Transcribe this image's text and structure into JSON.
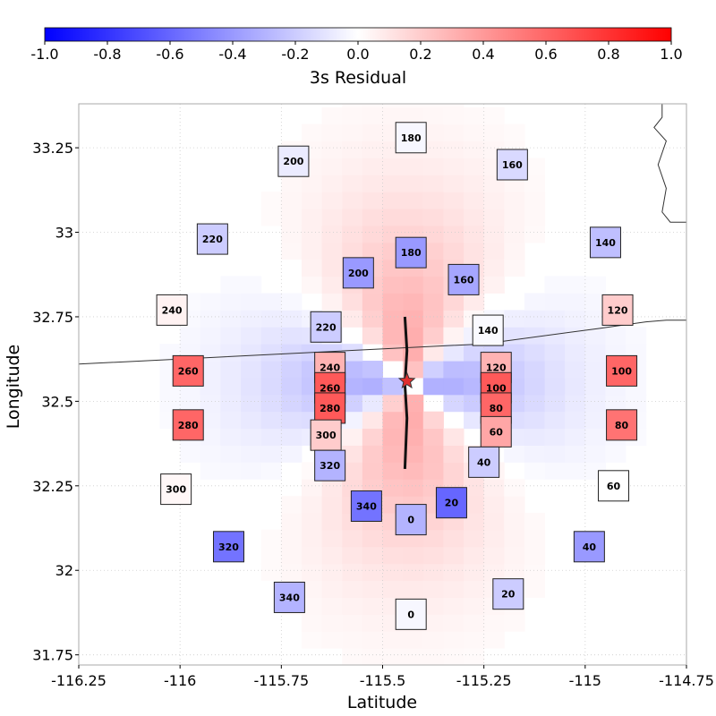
{
  "chart_data": {
    "type": "heatmap",
    "title": "",
    "xlabel": "Latitude",
    "ylabel": "Longitude",
    "xlim": [
      -116.25,
      -114.75
    ],
    "ylim": [
      31.72,
      33.38
    ],
    "xticks": [
      -116.25,
      -116,
      -115.75,
      -115.5,
      -115.25,
      -115,
      -114.75
    ],
    "xtick_labels": [
      "-116.25",
      "-116",
      "-115.75",
      "-115.5",
      "-115.25",
      "-115",
      "-114.75"
    ],
    "yticks": [
      31.75,
      32,
      32.25,
      32.5,
      32.75,
      33,
      33.25
    ],
    "ytick_labels": [
      "31.75",
      "32",
      "32.25",
      "32.5",
      "32.75",
      "33",
      "33.25"
    ],
    "grid": true,
    "colorbar": {
      "label": "3s Residual",
      "min": -1.0,
      "max": 1.0,
      "ticks": [
        -1.0,
        -0.8,
        -0.6,
        -0.4,
        -0.2,
        0.0,
        0.2,
        0.4,
        0.6,
        0.8,
        1.0
      ],
      "tick_labels": [
        "-1.0",
        "-0.8",
        "-0.6",
        "-0.4",
        "-0.2",
        "0.0",
        "0.2",
        "0.4",
        "0.6",
        "0.8",
        "1.0"
      ],
      "colormap": "bwr"
    },
    "epicenter": {
      "x": -115.44,
      "y": 32.56
    },
    "fault_trace": [
      {
        "x": -115.445,
        "y": 32.75
      },
      {
        "x": -115.44,
        "y": 32.65
      },
      {
        "x": -115.445,
        "y": 32.55
      },
      {
        "x": -115.44,
        "y": 32.45
      },
      {
        "x": -115.445,
        "y": 32.3
      }
    ],
    "border_line": [
      {
        "x": -116.25,
        "y": 32.61
      },
      {
        "x": -115.75,
        "y": 32.64
      },
      {
        "x": -115.25,
        "y": 32.67
      },
      {
        "x": -114.97,
        "y": 32.715
      },
      {
        "x": -114.85,
        "y": 32.735
      },
      {
        "x": -114.8,
        "y": 32.74
      },
      {
        "x": -114.75,
        "y": 32.74
      }
    ],
    "state_line": [
      {
        "x": -114.81,
        "y": 33.38
      },
      {
        "x": -114.81,
        "y": 33.34
      },
      {
        "x": -114.83,
        "y": 33.31
      },
      {
        "x": -114.8,
        "y": 33.27
      },
      {
        "x": -114.82,
        "y": 33.2
      },
      {
        "x": -114.8,
        "y": 33.13
      },
      {
        "x": -114.81,
        "y": 33.06
      },
      {
        "x": -114.79,
        "y": 33.03
      },
      {
        "x": -114.75,
        "y": 33.03
      }
    ],
    "stations": [
      {
        "label": "180",
        "x": -115.43,
        "y": 33.28,
        "value": -0.03
      },
      {
        "label": "200",
        "x": -115.72,
        "y": 33.21,
        "value": -0.08
      },
      {
        "label": "160",
        "x": -115.18,
        "y": 33.2,
        "value": -0.15
      },
      {
        "label": "220",
        "x": -115.92,
        "y": 32.98,
        "value": -0.2
      },
      {
        "label": "140",
        "x": -114.95,
        "y": 32.97,
        "value": -0.25
      },
      {
        "label": "180",
        "x": -115.43,
        "y": 32.94,
        "value": -0.4
      },
      {
        "label": "200",
        "x": -115.56,
        "y": 32.88,
        "value": -0.4
      },
      {
        "label": "160",
        "x": -115.3,
        "y": 32.86,
        "value": -0.35
      },
      {
        "label": "240",
        "x": -116.02,
        "y": 32.77,
        "value": 0.05
      },
      {
        "label": "120",
        "x": -114.92,
        "y": 32.77,
        "value": 0.2
      },
      {
        "label": "220",
        "x": -115.64,
        "y": 32.72,
        "value": -0.2
      },
      {
        "label": "140",
        "x": -115.24,
        "y": 32.71,
        "value": -0.02
      },
      {
        "label": "240",
        "x": -115.63,
        "y": 32.6,
        "value": 0.3
      },
      {
        "label": "120",
        "x": -115.22,
        "y": 32.6,
        "value": 0.3
      },
      {
        "label": "260",
        "x": -115.98,
        "y": 32.59,
        "value": 0.6
      },
      {
        "label": "100",
        "x": -114.91,
        "y": 32.59,
        "value": 0.6
      },
      {
        "label": "260",
        "x": -115.63,
        "y": 32.54,
        "value": 0.65
      },
      {
        "label": "100",
        "x": -115.22,
        "y": 32.54,
        "value": 0.65
      },
      {
        "label": "280",
        "x": -115.63,
        "y": 32.48,
        "value": 0.65
      },
      {
        "label": "80",
        "x": -115.22,
        "y": 32.48,
        "value": 0.6
      },
      {
        "label": "280",
        "x": -115.98,
        "y": 32.43,
        "value": 0.6
      },
      {
        "label": "80",
        "x": -114.91,
        "y": 32.43,
        "value": 0.55
      },
      {
        "label": "300",
        "x": -115.64,
        "y": 32.4,
        "value": 0.2
      },
      {
        "label": "60",
        "x": -115.22,
        "y": 32.41,
        "value": 0.35
      },
      {
        "label": "320",
        "x": -115.63,
        "y": 32.31,
        "value": -0.3
      },
      {
        "label": "40",
        "x": -115.25,
        "y": 32.32,
        "value": -0.2
      },
      {
        "label": "300",
        "x": -116.01,
        "y": 32.24,
        "value": 0.03
      },
      {
        "label": "60",
        "x": -114.93,
        "y": 32.25,
        "value": 0.0
      },
      {
        "label": "340",
        "x": -115.54,
        "y": 32.19,
        "value": -0.55
      },
      {
        "label": "20",
        "x": -115.33,
        "y": 32.2,
        "value": -0.6
      },
      {
        "label": "0",
        "x": -115.43,
        "y": 32.15,
        "value": -0.3
      },
      {
        "label": "320",
        "x": -115.88,
        "y": 32.07,
        "value": -0.55
      },
      {
        "label": "40",
        "x": -114.99,
        "y": 32.07,
        "value": -0.4
      },
      {
        "label": "340",
        "x": -115.73,
        "y": 31.92,
        "value": -0.3
      },
      {
        "label": "20",
        "x": -115.19,
        "y": 31.93,
        "value": -0.2
      },
      {
        "label": "0",
        "x": -115.43,
        "y": 31.87,
        "value": -0.03
      }
    ]
  }
}
